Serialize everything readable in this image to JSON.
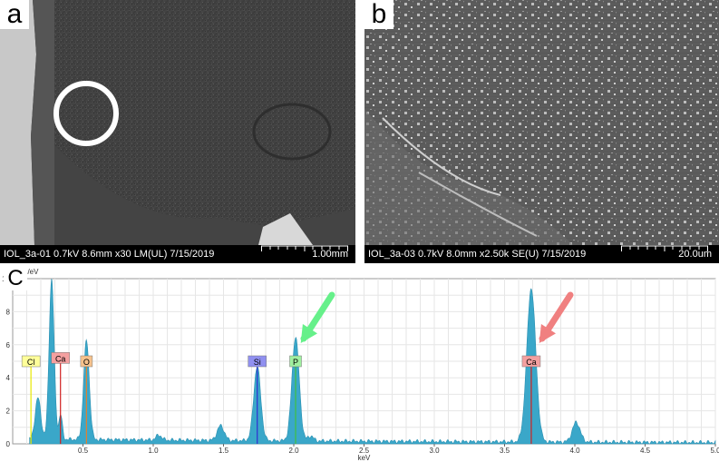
{
  "panels": {
    "a": {
      "letter": "a",
      "meta": "IOL_3a-01 0.7kV 8.6mm x30 LM(UL) 7/15/2019",
      "scale": "1.00mm"
    },
    "b": {
      "letter": "b",
      "meta": "IOL_3a-03 0.7kV 8.0mm x2.50k SE(U) 7/15/2019",
      "scale": "20.0um"
    }
  },
  "colors": {
    "spectrum": "#3aa7c9",
    "green_arrow": "#66f08a",
    "red_arrow": "#f08080",
    "circle": "#ffffff"
  },
  "chart_data": {
    "type": "area",
    "letter": "C",
    "xlabel": "keV",
    "ylabel": "cps/eV",
    "xlim": [
      0,
      5.0
    ],
    "ylim": [
      0,
      10
    ],
    "x_ticks": [
      0.5,
      1.0,
      1.5,
      2.0,
      2.5,
      3.0,
      3.5,
      4.0,
      4.5,
      5.0
    ],
    "x_tick_labels": [
      "0.5",
      "1.0",
      "1.5",
      "2.0",
      "2.5",
      "3.0",
      "3.5",
      "4.0",
      "4.5",
      "5.0"
    ],
    "y_ticks": [
      0,
      2,
      4,
      6,
      8,
      10
    ],
    "y_tick_labels": [
      "0",
      "2",
      "4",
      "6",
      "8",
      "10"
    ],
    "grid": true,
    "peaks": [
      {
        "x": 0.18,
        "y": 2.5,
        "w": 0.02
      },
      {
        "x": 0.277,
        "y": 9.7,
        "w": 0.018
      },
      {
        "x": 0.341,
        "y": 1.5,
        "w": 0.012
      },
      {
        "x": 0.525,
        "y": 6.0,
        "w": 0.02
      },
      {
        "x": 1.04,
        "y": 0.3,
        "w": 0.02
      },
      {
        "x": 1.48,
        "y": 0.9,
        "w": 0.025
      },
      {
        "x": 1.74,
        "y": 4.5,
        "w": 0.025
      },
      {
        "x": 2.013,
        "y": 6.3,
        "w": 0.026
      },
      {
        "x": 2.12,
        "y": 0.3,
        "w": 0.02
      },
      {
        "x": 3.69,
        "y": 9.3,
        "w": 0.032
      },
      {
        "x": 4.01,
        "y": 1.2,
        "w": 0.028
      }
    ],
    "baseline": 0.3,
    "element_labels": [
      {
        "label": "Cl",
        "x": 0.13,
        "y": 5.0,
        "color": "#ffff99",
        "line": "#e8e800"
      },
      {
        "label": "Ca",
        "x": 0.34,
        "y": 5.2,
        "color": "#f4a0a0",
        "line": "#d02020"
      },
      {
        "label": "O",
        "x": 0.525,
        "y": 5.0,
        "color": "#f6c28c",
        "line": "#e08030"
      },
      {
        "label": "Si",
        "x": 1.74,
        "y": 5.0,
        "color": "#9090f0",
        "line": "#3030d0"
      },
      {
        "label": "P",
        "x": 2.013,
        "y": 5.0,
        "color": "#a0f0a0",
        "line": "#40c040"
      },
      {
        "label": "Ca",
        "x": 3.69,
        "y": 5.0,
        "color": "#f4a0a0",
        "line": "#d02020"
      }
    ]
  }
}
